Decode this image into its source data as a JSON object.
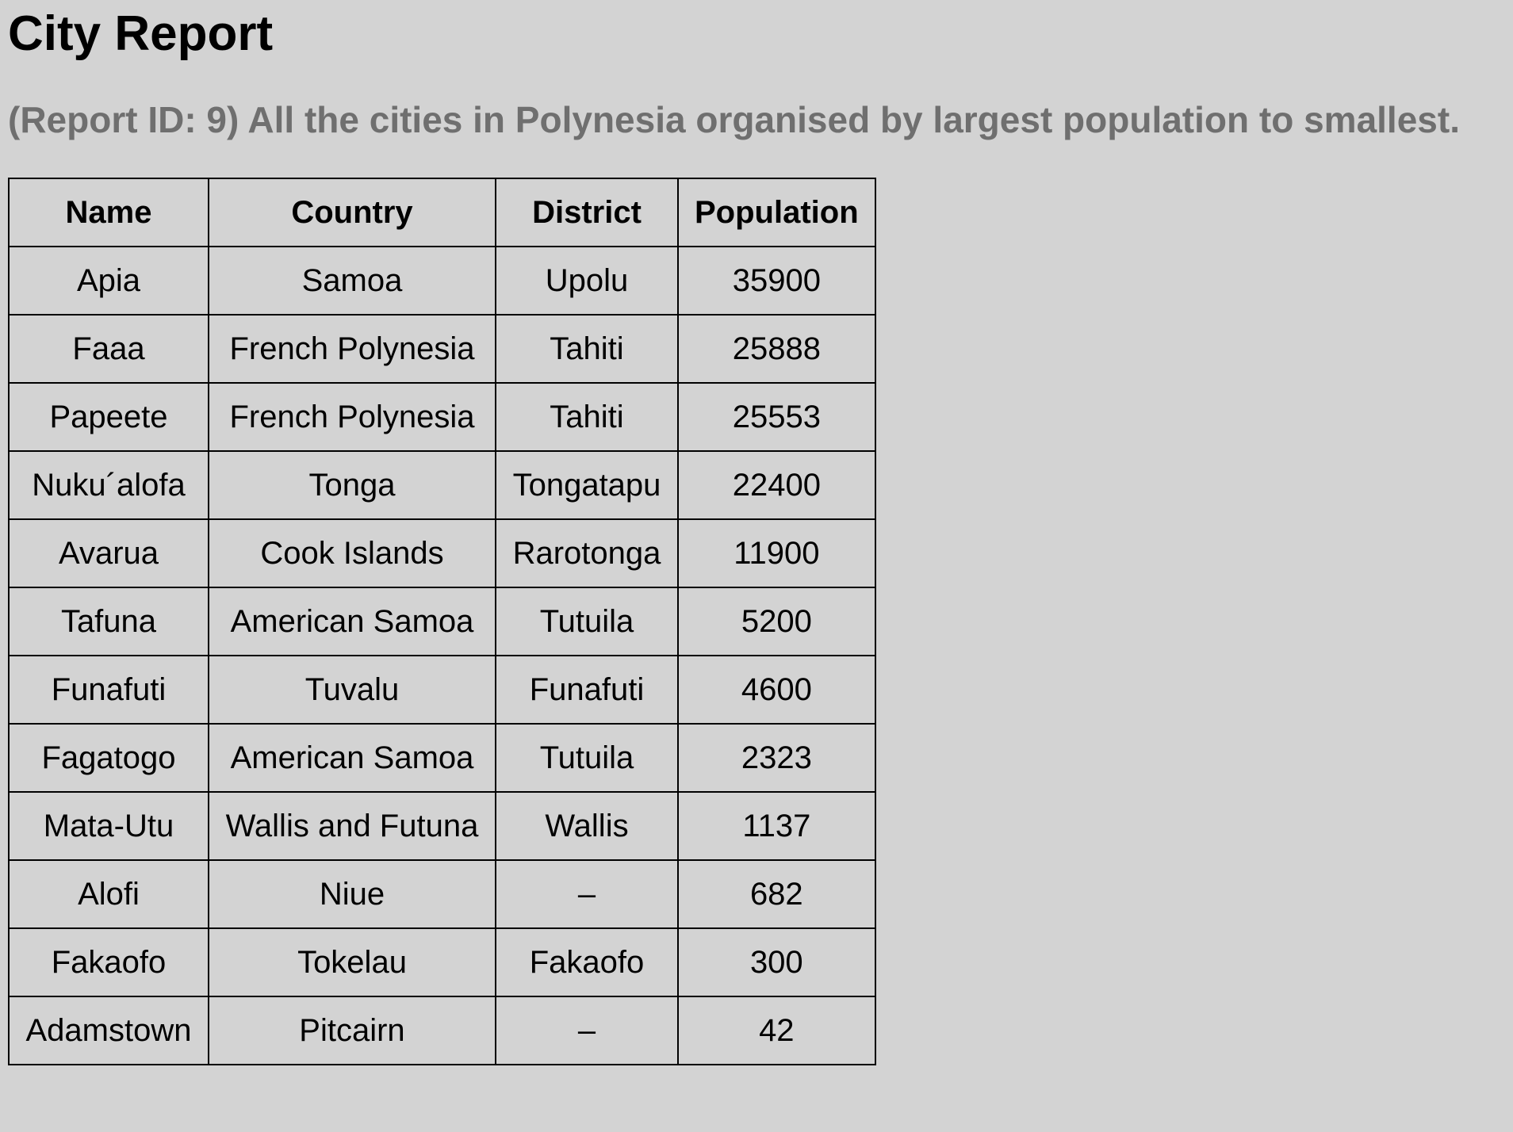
{
  "report": {
    "title": "City Report",
    "subtitle": "(Report ID: 9) All the cities in Polynesia organised by largest population to smallest."
  },
  "table": {
    "headers": {
      "name": "Name",
      "country": "Country",
      "district": "District",
      "population": "Population"
    },
    "rows": [
      {
        "name": "Apia",
        "country": "Samoa",
        "district": "Upolu",
        "population": "35900"
      },
      {
        "name": "Faaa",
        "country": "French Polynesia",
        "district": "Tahiti",
        "population": "25888"
      },
      {
        "name": "Papeete",
        "country": "French Polynesia",
        "district": "Tahiti",
        "population": "25553"
      },
      {
        "name": "Nuku´alofa",
        "country": "Tonga",
        "district": "Tongatapu",
        "population": "22400"
      },
      {
        "name": "Avarua",
        "country": "Cook Islands",
        "district": "Rarotonga",
        "population": "11900"
      },
      {
        "name": "Tafuna",
        "country": "American Samoa",
        "district": "Tutuila",
        "population": "5200"
      },
      {
        "name": "Funafuti",
        "country": "Tuvalu",
        "district": "Funafuti",
        "population": "4600"
      },
      {
        "name": "Fagatogo",
        "country": "American Samoa",
        "district": "Tutuila",
        "population": "2323"
      },
      {
        "name": "Mata-Utu",
        "country": "Wallis and Futuna",
        "district": "Wallis",
        "population": "1137"
      },
      {
        "name": "Alofi",
        "country": "Niue",
        "district": "–",
        "population": "682"
      },
      {
        "name": "Fakaofo",
        "country": "Tokelau",
        "district": "Fakaofo",
        "population": "300"
      },
      {
        "name": "Adamstown",
        "country": "Pitcairn",
        "district": "–",
        "population": "42"
      }
    ]
  }
}
